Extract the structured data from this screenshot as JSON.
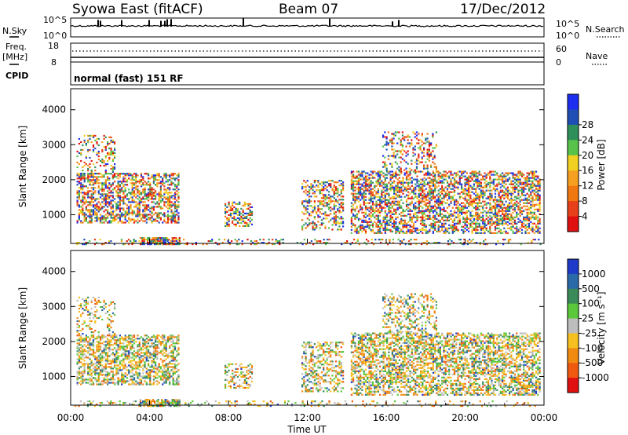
{
  "header": {
    "site": "Syowa East (fitACF)",
    "beam": "Beam 07",
    "date": "17/Dec/2012"
  },
  "left_labels": {
    "nsky": "N.Sky",
    "freq": "Freq.",
    "mhz": "[MHz]",
    "cpid": "CPID"
  },
  "right_labels": {
    "nsearch": "N.Search",
    "nave": "Nave"
  },
  "cpid_text": "normal (fast) 151 RF",
  "noise_panel": {
    "left_ticks": [
      "10^5",
      "10^0"
    ],
    "right_ticks": [
      "10^5",
      "10^0"
    ]
  },
  "freq_panel": {
    "left_ticks": [
      "18",
      "8"
    ],
    "right_ticks": [
      "60",
      "0"
    ]
  },
  "chart_data": [
    {
      "type": "heatmap",
      "title": "",
      "xlabel": "Time UT",
      "ylabel": "Slant Range [km]",
      "x_ticks": [
        "00:00",
        "04:00",
        "08:00",
        "12:00",
        "16:00",
        "20:00",
        "00:00"
      ],
      "y_ticks": [
        "1000",
        "2000",
        "3000",
        "4000"
      ],
      "xlim_hours": [
        0,
        24
      ],
      "ylim_km": [
        180,
        4600
      ],
      "colorbar": {
        "label": "Power [dB]",
        "tick_labels": [
          "4",
          "8",
          "12",
          "16",
          "20",
          "24",
          "28"
        ],
        "colors": [
          "#1e2ef0",
          "#1f4fb4",
          "#2e8f5a",
          "#58c24a",
          "#f0d020",
          "#f5a020",
          "#f07810",
          "#e8401a",
          "#e01010"
        ]
      }
    },
    {
      "type": "heatmap",
      "title": "",
      "xlabel": "Time UT",
      "ylabel": "Slant Range [km]",
      "x_ticks": [
        "00:00",
        "04:00",
        "08:00",
        "12:00",
        "16:00",
        "20:00",
        "00:00"
      ],
      "y_ticks": [
        "1000",
        "2000",
        "3000",
        "4000"
      ],
      "xlim_hours": [
        0,
        24
      ],
      "ylim_km": [
        180,
        4600
      ],
      "colorbar": {
        "label": "Velocity [m s⁻¹]",
        "tick_labels": [
          "1000",
          "500",
          "100",
          "25",
          "-25",
          "-100",
          "-500",
          "-1000"
        ],
        "colors": [
          "#1e3ac8",
          "#2a6aa8",
          "#3a8a5a",
          "#5ac83a",
          "#bdbdbd",
          "#f5c020",
          "#f08a10",
          "#f05a10",
          "#e01010"
        ]
      }
    }
  ]
}
